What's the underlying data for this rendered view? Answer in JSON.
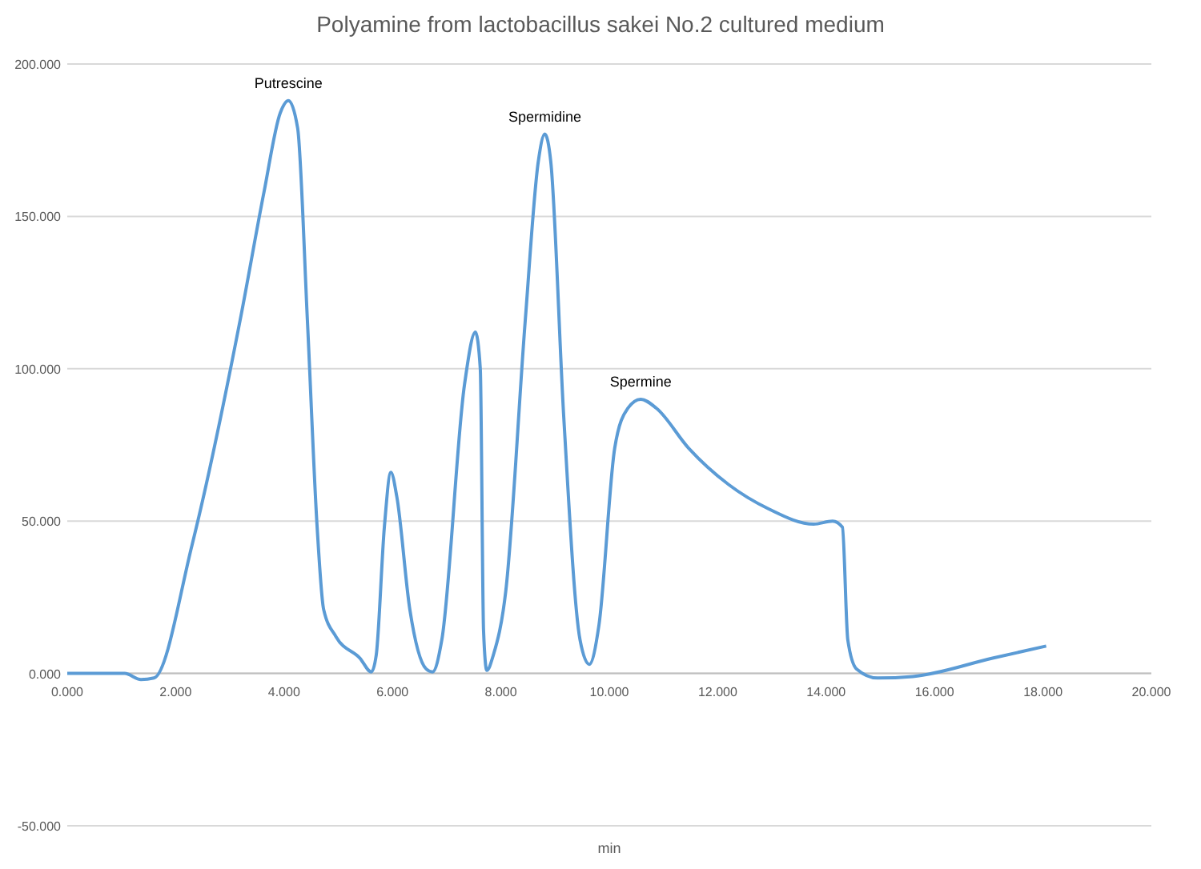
{
  "chart_data": {
    "type": "line",
    "title": "Polyamine from lactobacillus sakei No.2 cultured medium",
    "xlabel": "min",
    "xlim": [
      0,
      20
    ],
    "ylim": [
      -50,
      200
    ],
    "xticks": [
      {
        "value": 0,
        "label": "0.000"
      },
      {
        "value": 2,
        "label": "2.000"
      },
      {
        "value": 4,
        "label": "4.000"
      },
      {
        "value": 6,
        "label": "6.000"
      },
      {
        "value": 8,
        "label": "8.000"
      },
      {
        "value": 10,
        "label": "10.000"
      },
      {
        "value": 12,
        "label": "12.000"
      },
      {
        "value": 14,
        "label": "14.000"
      },
      {
        "value": 16,
        "label": "16.000"
      },
      {
        "value": 18,
        "label": "18.000"
      },
      {
        "value": 20,
        "label": "20.000"
      }
    ],
    "yticks": [
      {
        "value": -50,
        "label": "-50.000"
      },
      {
        "value": 0,
        "label": "0.000"
      },
      {
        "value": 50,
        "label": "50.000"
      },
      {
        "value": 100,
        "label": "100.000"
      },
      {
        "value": 150,
        "label": "150.000"
      },
      {
        "value": 200,
        "label": "200.000"
      }
    ],
    "grid": "y",
    "marker": "none",
    "line_style": "solid",
    "annotations": [
      {
        "text": "Putrescine",
        "x": 4.08,
        "y": 188
      },
      {
        "text": "Spermidine",
        "x": 8.81,
        "y": 177
      },
      {
        "text": "Spermine",
        "x": 10.58,
        "y": 90
      }
    ],
    "series": [
      {
        "color": "#5b9bd5",
        "x": [
          0,
          1.06,
          1.36,
          1.6,
          2.3,
          3.19,
          3.63,
          3.93,
          4.08,
          4.25,
          4.43,
          4.61,
          4.73,
          4.96,
          5.4,
          5.61,
          5.7,
          5.85,
          5.97,
          6.08,
          6.32,
          6.62,
          6.74,
          6.91,
          7.33,
          7.53,
          7.62,
          7.68,
          7.74,
          7.86,
          8.09,
          8.45,
          8.69,
          8.81,
          8.92,
          9.16,
          9.46,
          9.63,
          9.81,
          10.1,
          10.34,
          10.58,
          10.87,
          11.46,
          12.2,
          12.94,
          13.77,
          14.12,
          14.3,
          14.4,
          14.56,
          14.95,
          15.6,
          17.07,
          18.06
        ],
        "values": [
          0,
          0,
          -2,
          -1.5,
          42,
          116,
          158,
          184,
          188,
          179,
          116,
          48,
          21,
          12,
          5,
          0.5,
          6,
          48,
          66,
          58,
          21,
          1.5,
          0.5,
          11,
          95,
          112,
          100,
          14,
          1,
          6,
          27,
          116,
          168,
          177,
          168,
          84,
          11,
          3,
          16,
          74,
          87,
          90,
          87,
          74,
          62,
          54,
          49,
          50,
          48,
          11,
          1.5,
          -1.5,
          -1,
          5,
          9
        ]
      }
    ]
  }
}
